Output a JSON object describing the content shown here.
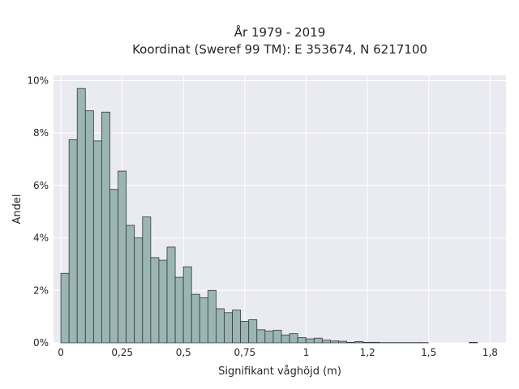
{
  "chart_data": {
    "type": "bar",
    "title": "År 1979 - 2019",
    "subtitle": "Koordinat (Sweref 99 TM): E 353674, N 6217100",
    "xlabel": "Signifikant våghöjd (m)",
    "ylabel": "Andel",
    "xlim": [
      -0.03,
      1.815
    ],
    "ylim": [
      0,
      10.2
    ],
    "x_ticks": [
      0,
      0.25,
      0.5,
      0.75,
      1,
      1.25,
      1.5,
      1.75
    ],
    "x_tick_labels": [
      "0",
      "0,25",
      "0,5",
      "0,75",
      "1",
      "1,2",
      "1,5",
      "1,8"
    ],
    "y_ticks": [
      0,
      2,
      4,
      6,
      8,
      10
    ],
    "y_tick_labels": [
      "0%",
      "2%",
      "4%",
      "6%",
      "8%",
      "10%"
    ],
    "bin_width": 0.0333,
    "bin_start": 0.0,
    "values": [
      2.65,
      7.75,
      9.7,
      8.85,
      7.7,
      8.8,
      5.85,
      6.55,
      4.48,
      4.0,
      4.8,
      3.25,
      3.15,
      3.65,
      2.5,
      2.9,
      1.85,
      1.72,
      2.0,
      1.3,
      1.15,
      1.25,
      0.82,
      0.88,
      0.5,
      0.45,
      0.48,
      0.3,
      0.35,
      0.2,
      0.15,
      0.18,
      0.1,
      0.07,
      0.06,
      0.02,
      0.05,
      0.02,
      0.02,
      0.01,
      0.01,
      0.01,
      0.01,
      0.01,
      0.01,
      0.0,
      0.0,
      0.0,
      0.0,
      0.0,
      0.02
    ],
    "grid": true,
    "colors": {
      "background": "#eaeaf2",
      "bar_fill": "#9bb5b4",
      "bar_edge": "#2f3a3a",
      "grid": "#ffffff"
    }
  }
}
